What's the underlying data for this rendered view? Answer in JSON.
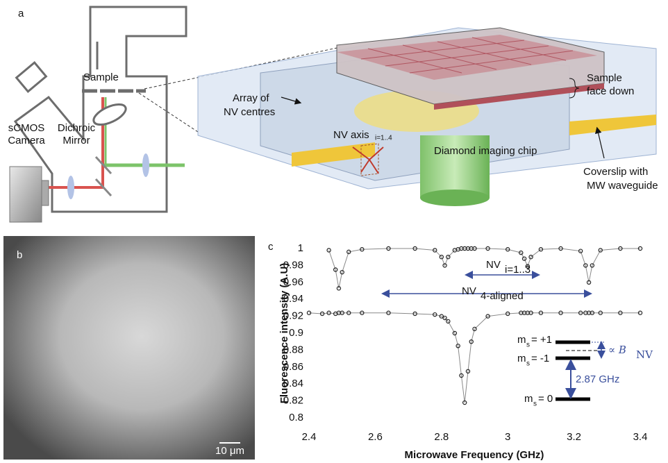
{
  "panel_a": {
    "label": "a",
    "sample": "Sample",
    "camera": [
      "sCMOS",
      "Camera"
    ],
    "dichroic": [
      "Dichroic",
      "Mirror"
    ],
    "array": [
      "Array of",
      "NV centres"
    ],
    "nv_axis": "NV axis",
    "nv_axis_sub": "i=1..4",
    "chip": "Diamond imaging chip",
    "sample_face": [
      "Sample",
      "face down"
    ],
    "coverslip": [
      "Coverslip with",
      "MW waveguide"
    ]
  },
  "panel_b": {
    "label": "b",
    "scale_bar": "10 μm"
  },
  "chart_data": {
    "type": "line",
    "panel_label": "c",
    "x_label": "Microwave Frequency (GHz)",
    "y_label": "Fluorescence intensity (A.U)",
    "x": [
      2.4,
      2.44,
      2.46,
      2.48,
      2.49,
      2.5,
      2.52,
      2.56,
      2.64,
      2.72,
      2.78,
      2.8,
      2.81,
      2.82,
      2.84,
      2.85,
      2.86,
      2.87,
      2.88,
      2.89,
      2.9,
      2.94,
      3.0,
      3.04,
      3.05,
      3.06,
      3.07,
      3.1,
      3.16,
      3.22,
      3.235,
      3.245,
      3.255,
      3.28,
      3.34,
      3.4
    ],
    "series": [
      {
        "color": "#222222",
        "values": [
          null,
          null,
          0.998,
          0.975,
          0.953,
          0.972,
          0.996,
          0.999,
          1.0,
          1.0,
          0.998,
          0.99,
          0.98,
          0.99,
          0.998,
          0.999,
          1.0,
          1.0,
          1.0,
          1.0,
          1.0,
          1.0,
          0.999,
          0.995,
          0.988,
          0.979,
          0.99,
          0.999,
          1.0,
          0.997,
          0.98,
          0.96,
          0.98,
          0.998,
          1.0,
          1.0
        ]
      },
      {
        "color": "#222222",
        "values": [
          0.924,
          0.923,
          0.924,
          0.923,
          0.924,
          0.924,
          0.924,
          0.924,
          0.924,
          0.923,
          0.922,
          0.92,
          0.918,
          0.914,
          0.9,
          0.885,
          0.85,
          0.818,
          0.855,
          0.89,
          0.905,
          0.92,
          0.923,
          0.924,
          0.924,
          0.924,
          0.924,
          0.924,
          0.924,
          0.924,
          0.924,
          0.924,
          0.924,
          0.924,
          0.924,
          0.924
        ]
      }
    ],
    "xlim": [
      2.4,
      3.4
    ],
    "xticks": [
      2.4,
      2.6,
      2.8,
      3,
      3.2,
      3.4
    ],
    "ylim": [
      0.8,
      1
    ],
    "yticks": [
      0.8,
      0.82,
      0.84,
      0.86,
      0.88,
      0.9,
      0.92,
      0.94,
      0.96,
      0.98,
      1
    ],
    "annotations": {
      "nv_i": "NV",
      "nv_i_sub": "i=1..3",
      "nv_4": "NV",
      "nv_4_sub": "4-aligned",
      "ms_p1": "m",
      "ms_p1_sub": "s",
      "ms_p1_val": "= +1",
      "ms_m1": "m",
      "ms_m1_sub": "s",
      "ms_m1_val": "= -1",
      "ms_0": "m",
      "ms_0_sub": "s",
      "ms_0_val": "= 0",
      "zfs": "2.87 GHz",
      "prop": "∝ B",
      "prop_sub": "NV"
    }
  }
}
